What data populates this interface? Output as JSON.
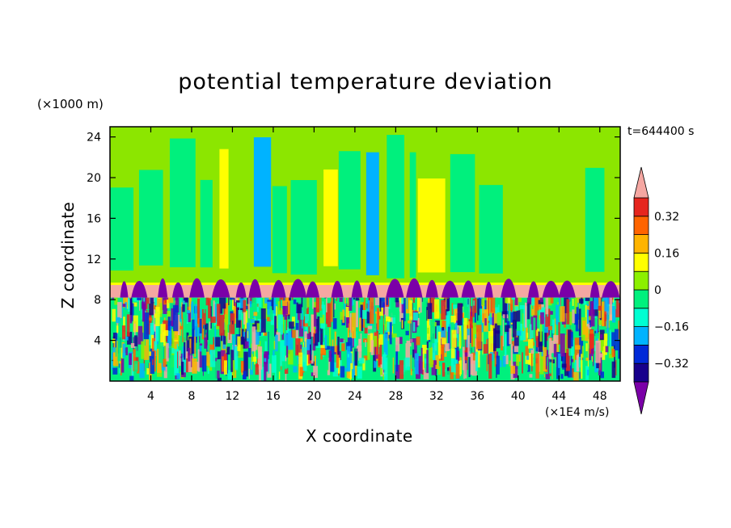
{
  "chart_data": {
    "type": "heatmap",
    "title": "potential temperature deviation",
    "xlabel": "X coordinate",
    "ylabel": "Z coordinate",
    "x_unit": "(×1E4 m/s)",
    "y_unit": "(×1000 m)",
    "time_label": "t=644400 s",
    "xlim": [
      0,
      50
    ],
    "ylim": [
      0,
      25
    ],
    "x_ticks": [
      4,
      8,
      12,
      16,
      20,
      24,
      28,
      32,
      36,
      40,
      44,
      48
    ],
    "y_ticks": [
      4,
      8,
      12,
      16,
      20,
      24
    ],
    "colorbar": {
      "levels": [
        -0.4,
        -0.32,
        -0.24,
        -0.16,
        -0.08,
        0,
        0.08,
        0.16,
        0.24,
        0.32,
        0.4
      ],
      "colors": [
        "#7b00a8",
        "#17008c",
        "#0029d8",
        "#00b3ff",
        "#00ffd2",
        "#00f07d",
        "#8cf000",
        "#ffff00",
        "#ffb400",
        "#ff6400",
        "#e6261e",
        "#f5a7a2"
      ],
      "tick_labels": [
        "0.32",
        "0.16",
        "0",
        "−0.16",
        "−0.32"
      ],
      "extend": "both"
    },
    "regions": [
      {
        "z_range": [
          9.6,
          25
        ],
        "description_range": [
          -0.16,
          0.24
        ]
      },
      {
        "z_range": [
          8.2,
          9.6
        ],
        "description_range": [
          0.4,
          0.48
        ]
      },
      {
        "z_range": [
          0,
          8.2
        ],
        "description_range": [
          -0.48,
          0.48
        ]
      }
    ]
  },
  "colors": {
    "upper_green": "#8ce600",
    "cyan_green": "#00f07d",
    "pink_band": "#f5a7a2",
    "purple": "#7b00a8"
  }
}
